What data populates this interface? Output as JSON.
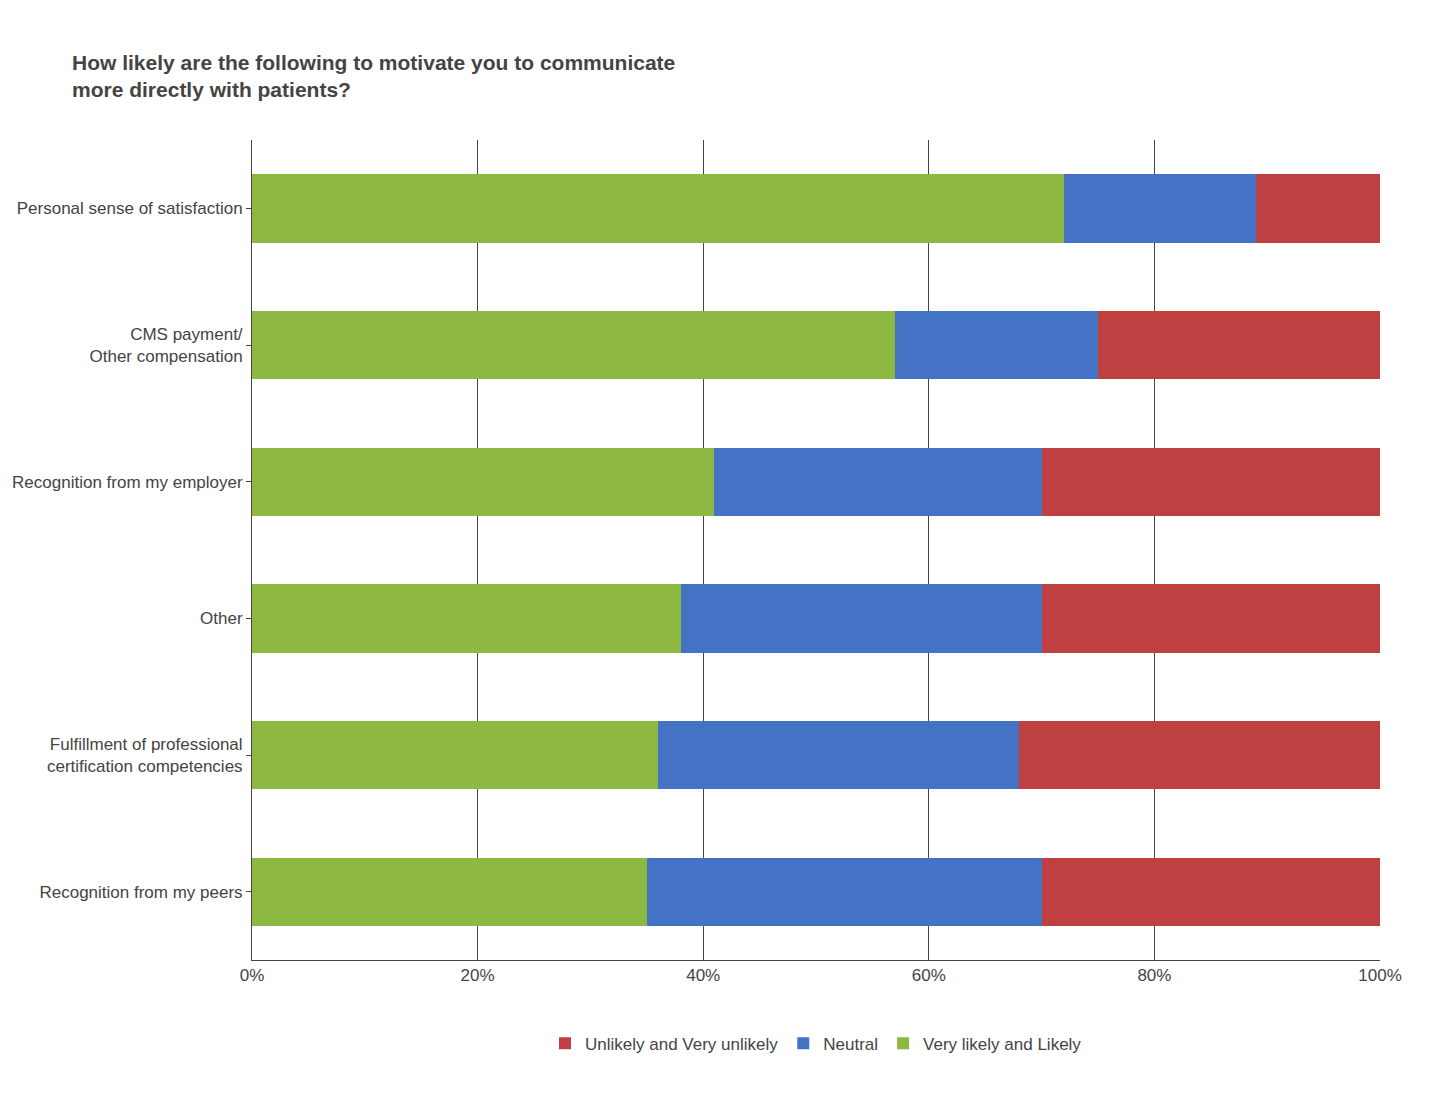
{
  "chart_data": {
    "type": "bar",
    "orientation": "horizontal",
    "stacked": true,
    "title": "How likely are the following to motivate you to communicate\nmore directly with patients?",
    "categories": [
      "Personal sense of satisfaction",
      "CMS payment/\nOther compensation",
      "Recognition from my employer",
      "Other",
      "Fulfillment of professional\ncertification competencies",
      "Recognition from my peers"
    ],
    "series": [
      {
        "name": "Very likely and Likely",
        "color": "#8db942",
        "values": [
          72,
          57,
          41,
          38,
          36,
          35
        ]
      },
      {
        "name": "Neutral",
        "color": "#4472c4",
        "values": [
          17,
          18,
          29,
          32,
          32,
          35
        ]
      },
      {
        "name": "Unlikely and Very unlikely",
        "color": "#bf4040",
        "values": [
          11,
          25,
          30,
          30,
          32,
          30
        ]
      }
    ],
    "xlim": [
      0,
      100
    ],
    "xticks": [
      {
        "value": 0,
        "label": "0%"
      },
      {
        "value": 20,
        "label": "20%"
      },
      {
        "value": 40,
        "label": "40%"
      },
      {
        "value": 60,
        "label": "60%"
      },
      {
        "value": 80,
        "label": "80%"
      },
      {
        "value": 100,
        "label": "100%"
      }
    ],
    "grid": true,
    "legend": "bottom"
  }
}
